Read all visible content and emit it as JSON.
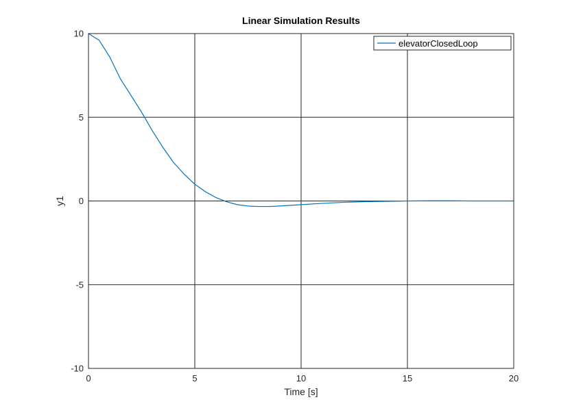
{
  "chart_data": {
    "type": "line",
    "title": "Linear Simulation Results",
    "xlabel": "Time [s]",
    "ylabel": "y1",
    "xlim": [
      0,
      20
    ],
    "ylim": [
      -10,
      10
    ],
    "xticks": [
      0,
      5,
      10,
      15,
      20
    ],
    "yticks": [
      -10,
      -5,
      0,
      5,
      10
    ],
    "grid": true,
    "legend_position": "top-right",
    "series": [
      {
        "name": "elevatorClosedLoop",
        "color": "#0072bd",
        "x": [
          0,
          0.5,
          1,
          1.5,
          2,
          2.5,
          3,
          3.5,
          4,
          4.5,
          5,
          5.5,
          6,
          6.5,
          7,
          7.5,
          8,
          8.5,
          9,
          9.5,
          10,
          11,
          12,
          13,
          14,
          15,
          16,
          17,
          18,
          19,
          20
        ],
        "y": [
          10,
          9.6,
          8.6,
          7.3,
          6.3,
          5.3,
          4.2,
          3.2,
          2.3,
          1.6,
          1.0,
          0.55,
          0.2,
          -0.05,
          -0.22,
          -0.3,
          -0.33,
          -0.33,
          -0.3,
          -0.26,
          -0.22,
          -0.14,
          -0.08,
          -0.04,
          -0.02,
          0,
          0.01,
          0.01,
          0,
          0,
          0
        ]
      }
    ]
  }
}
